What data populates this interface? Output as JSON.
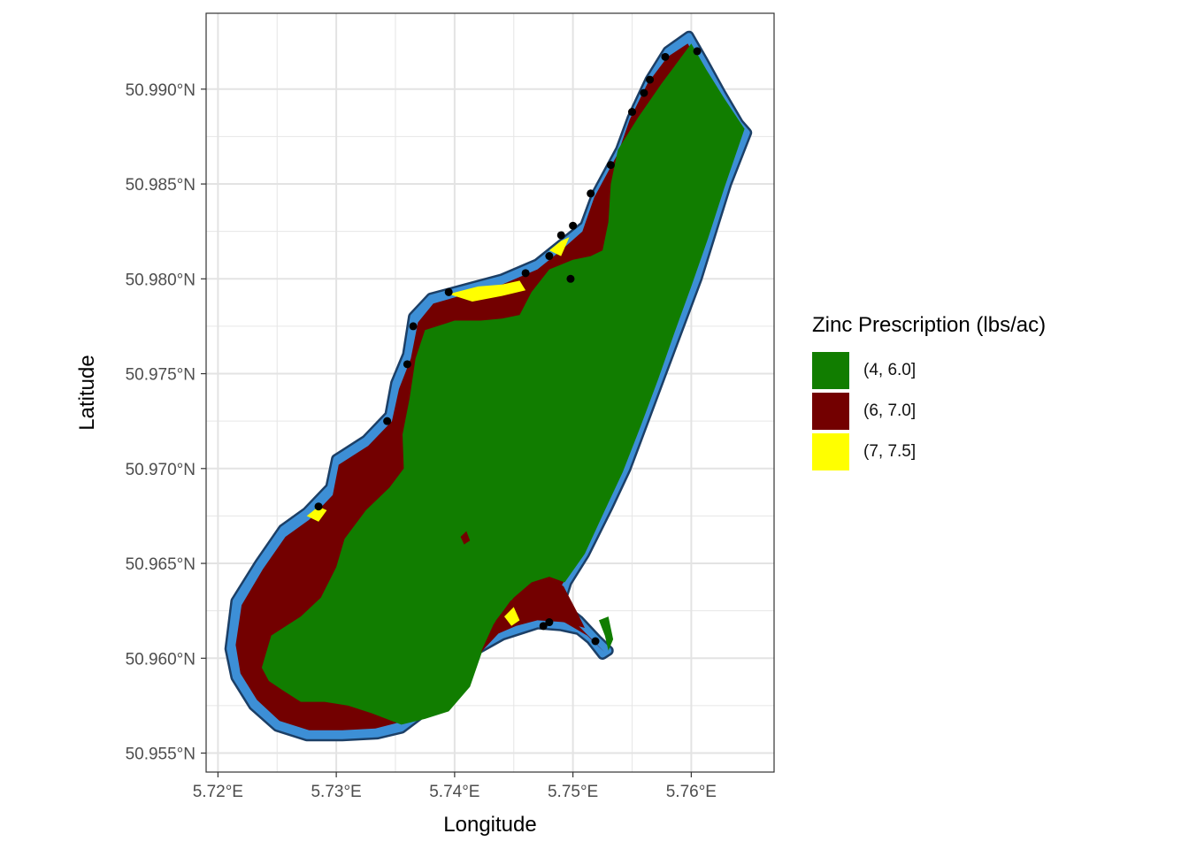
{
  "map": {
    "x_axis_title": "Longitude",
    "y_axis_title": "Latitude",
    "x_ticks": [
      {
        "value": 5.72,
        "label": "5.72°E"
      },
      {
        "value": 5.73,
        "label": "5.73°E"
      },
      {
        "value": 5.74,
        "label": "5.74°E"
      },
      {
        "value": 5.75,
        "label": "5.75°E"
      },
      {
        "value": 5.76,
        "label": "5.76°E"
      }
    ],
    "y_ticks": [
      {
        "value": 50.955,
        "label": "50.955°N"
      },
      {
        "value": 50.96,
        "label": "50.960°N"
      },
      {
        "value": 50.965,
        "label": "50.965°N"
      },
      {
        "value": 50.97,
        "label": "50.970°N"
      },
      {
        "value": 50.975,
        "label": "50.975°N"
      },
      {
        "value": 50.98,
        "label": "50.980°N"
      },
      {
        "value": 50.985,
        "label": "50.985°N"
      },
      {
        "value": 50.99,
        "label": "50.990°N"
      }
    ],
    "xlim": [
      5.719,
      5.767
    ],
    "ylim": [
      50.954,
      50.994
    ],
    "grid": true
  },
  "legend": {
    "title": "Zinc Prescription (lbs/ac)",
    "placement": "right",
    "items": [
      {
        "label": "(4, 6.0]",
        "color": "#117d00"
      },
      {
        "label": "(6, 7.0]",
        "color": "#730000"
      },
      {
        "label": "(7, 7.5]",
        "color": "#ffff00"
      }
    ]
  },
  "colors": {
    "boundary_light": "#3d8fd6",
    "boundary_dark": "#1c3f66",
    "points": "#000000",
    "grid": "#e6e6e6",
    "panel_border": "#333333"
  },
  "field_boundary": [
    [
      5.721,
      50.9605
    ],
    [
      5.7215,
      50.963
    ],
    [
      5.7235,
      50.965
    ],
    [
      5.7255,
      50.9668
    ],
    [
      5.7275,
      50.9677
    ],
    [
      5.7295,
      50.969
    ],
    [
      5.73,
      50.9705
    ],
    [
      5.7325,
      50.9715
    ],
    [
      5.7345,
      50.9728
    ],
    [
      5.735,
      50.9745
    ],
    [
      5.736,
      50.976
    ],
    [
      5.7365,
      50.978
    ],
    [
      5.738,
      50.979
    ],
    [
      5.741,
      50.9795
    ],
    [
      5.744,
      50.98
    ],
    [
      5.747,
      50.9808
    ],
    [
      5.749,
      50.9818
    ],
    [
      5.751,
      50.9828
    ],
    [
      5.752,
      50.9845
    ],
    [
      5.754,
      50.9868
    ],
    [
      5.755,
      50.9885
    ],
    [
      5.7565,
      50.9905
    ],
    [
      5.758,
      50.992
    ],
    [
      5.7598,
      50.9928
    ],
    [
      5.761,
      50.9915
    ],
    [
      5.7625,
      50.9898
    ],
    [
      5.764,
      50.9882
    ],
    [
      5.7647,
      50.9877
    ],
    [
      5.763,
      50.985
    ],
    [
      5.762,
      50.983
    ],
    [
      5.7605,
      50.98
    ],
    [
      5.759,
      50.9775
    ],
    [
      5.7575,
      50.975
    ],
    [
      5.756,
      50.9725
    ],
    [
      5.7545,
      50.97
    ],
    [
      5.753,
      50.968
    ],
    [
      5.751,
      50.9655
    ],
    [
      5.7495,
      50.964
    ],
    [
      5.749,
      50.963
    ],
    [
      5.7495,
      50.9625
    ],
    [
      5.7505,
      50.962
    ],
    [
      5.752,
      50.961
    ],
    [
      5.753,
      50.9604
    ],
    [
      5.7525,
      50.9602
    ],
    [
      5.7515,
      50.961
    ],
    [
      5.7505,
      50.9615
    ],
    [
      5.749,
      50.9617
    ],
    [
      5.747,
      50.9618
    ],
    [
      5.7455,
      50.9615
    ],
    [
      5.744,
      50.9612
    ],
    [
      5.742,
      50.9605
    ],
    [
      5.74,
      50.9595
    ],
    [
      5.7385,
      50.958
    ],
    [
      5.737,
      50.957
    ],
    [
      5.7355,
      50.9563
    ],
    [
      5.7335,
      50.956
    ],
    [
      5.7305,
      50.9559
    ],
    [
      5.7275,
      50.9559
    ],
    [
      5.725,
      50.9564
    ],
    [
      5.723,
      50.9575
    ],
    [
      5.7215,
      50.959
    ]
  ],
  "zone_6_7": [
    [
      5.7215,
      50.9607
    ],
    [
      5.722,
      50.9628
    ],
    [
      5.7238,
      50.9647
    ],
    [
      5.7257,
      50.9664
    ],
    [
      5.7277,
      50.9673
    ],
    [
      5.7297,
      50.9686
    ],
    [
      5.7302,
      50.9702
    ],
    [
      5.7327,
      50.9712
    ],
    [
      5.7347,
      50.9725
    ],
    [
      5.7353,
      50.9742
    ],
    [
      5.7363,
      50.9758
    ],
    [
      5.7369,
      50.9777
    ],
    [
      5.7382,
      50.9787
    ],
    [
      5.741,
      50.9792
    ],
    [
      5.744,
      50.9797
    ],
    [
      5.747,
      50.9805
    ],
    [
      5.749,
      50.9815
    ],
    [
      5.7508,
      50.9825
    ],
    [
      5.7518,
      50.9843
    ],
    [
      5.7538,
      50.9866
    ],
    [
      5.7548,
      50.9884
    ],
    [
      5.7563,
      50.9903
    ],
    [
      5.758,
      50.9917
    ],
    [
      5.7597,
      50.9924
    ],
    [
      5.7608,
      50.9912
    ],
    [
      5.7623,
      50.9896
    ],
    [
      5.764,
      50.9879
    ],
    [
      5.7625,
      50.9848
    ],
    [
      5.7612,
      50.9822
    ],
    [
      5.7598,
      50.9797
    ],
    [
      5.7584,
      50.9772
    ],
    [
      5.757,
      50.9747
    ],
    [
      5.7555,
      50.9722
    ],
    [
      5.754,
      50.9698
    ],
    [
      5.7525,
      50.9678
    ],
    [
      5.7507,
      50.9654
    ],
    [
      5.7491,
      50.9639
    ],
    [
      5.7488,
      50.9628
    ],
    [
      5.75,
      50.962
    ],
    [
      5.7516,
      50.961
    ],
    [
      5.7527,
      50.9603
    ],
    [
      5.7512,
      50.9612
    ],
    [
      5.749,
      50.962
    ],
    [
      5.747,
      50.9621
    ],
    [
      5.7453,
      50.9618
    ],
    [
      5.7438,
      50.9615
    ],
    [
      5.7417,
      50.9608
    ],
    [
      5.7397,
      50.9598
    ],
    [
      5.7382,
      50.9583
    ],
    [
      5.7367,
      50.9573
    ],
    [
      5.7352,
      50.9566
    ],
    [
      5.7333,
      50.9563
    ],
    [
      5.7305,
      50.9562
    ],
    [
      5.7277,
      50.9562
    ],
    [
      5.7252,
      50.9567
    ],
    [
      5.7233,
      50.9578
    ],
    [
      5.7219,
      50.9592
    ]
  ],
  "zone_4_6": [
    [
      5.7237,
      50.9595
    ],
    [
      5.7245,
      50.9612
    ],
    [
      5.727,
      50.9622
    ],
    [
      5.7287,
      50.9632
    ],
    [
      5.73,
      50.9648
    ],
    [
      5.7307,
      50.9663
    ],
    [
      5.7325,
      50.9678
    ],
    [
      5.7345,
      50.969
    ],
    [
      5.7357,
      50.97
    ],
    [
      5.7356,
      50.9718
    ],
    [
      5.7362,
      50.9737
    ],
    [
      5.7367,
      50.9758
    ],
    [
      5.7375,
      50.9773
    ],
    [
      5.74,
      50.9778
    ],
    [
      5.7422,
      50.9778
    ],
    [
      5.744,
      50.9779
    ],
    [
      5.7455,
      50.9781
    ],
    [
      5.7465,
      50.9793
    ],
    [
      5.748,
      50.9805
    ],
    [
      5.75,
      50.981
    ],
    [
      5.7515,
      50.9812
    ],
    [
      5.7525,
      50.9815
    ],
    [
      5.753,
      50.983
    ],
    [
      5.7532,
      50.985
    ],
    [
      5.7538,
      50.9868
    ],
    [
      5.7555,
      50.9885
    ],
    [
      5.7575,
      50.9903
    ],
    [
      5.76,
      50.9924
    ],
    [
      5.7613,
      50.991
    ],
    [
      5.7628,
      50.9895
    ],
    [
      5.7645,
      50.9879
    ],
    [
      5.7628,
      50.9848
    ],
    [
      5.7614,
      50.9821
    ],
    [
      5.76,
      50.9796
    ],
    [
      5.7586,
      50.9772
    ],
    [
      5.7572,
      50.9747
    ],
    [
      5.7557,
      50.9722
    ],
    [
      5.7542,
      50.9698
    ],
    [
      5.7527,
      50.9678
    ],
    [
      5.751,
      50.9655
    ],
    [
      5.7493,
      50.964
    ],
    [
      5.748,
      50.9643
    ],
    [
      5.7465,
      50.964
    ],
    [
      5.745,
      50.9632
    ],
    [
      5.7435,
      50.962
    ],
    [
      5.7423,
      50.9603
    ],
    [
      5.7413,
      50.9585
    ],
    [
      5.7395,
      50.9572
    ],
    [
      5.7375,
      50.9568
    ],
    [
      5.7355,
      50.9565
    ],
    [
      5.733,
      50.9571
    ],
    [
      5.731,
      50.9575
    ],
    [
      5.729,
      50.9577
    ],
    [
      5.727,
      50.9577
    ],
    [
      5.7255,
      50.9583
    ],
    [
      5.7243,
      50.9588
    ]
  ],
  "zone_6_7_inner": [
    [
      5.7422,
      50.9603
    ],
    [
      5.7433,
      50.9618
    ],
    [
      5.7447,
      50.963
    ],
    [
      5.7463,
      50.9638
    ],
    [
      5.748,
      50.9641
    ],
    [
      5.7492,
      50.9638
    ],
    [
      5.7503,
      50.9625
    ],
    [
      5.751,
      50.9616
    ],
    [
      5.7492,
      50.9619
    ],
    [
      5.747,
      50.962
    ],
    [
      5.7452,
      50.9617
    ],
    [
      5.7437,
      50.9613
    ]
  ],
  "zone_6_7_inner2": [
    [
      5.7527,
      50.9612
    ],
    [
      5.7522,
      50.962
    ],
    [
      5.753,
      50.9622
    ],
    [
      5.7534,
      50.961
    ],
    [
      5.753,
      50.9604
    ]
  ],
  "zone_7_75": [
    [
      [
        5.7395,
        50.9792
      ],
      [
        5.742,
        50.9796
      ],
      [
        5.744,
        50.9797
      ],
      [
        5.7455,
        50.9799
      ],
      [
        5.746,
        50.9794
      ],
      [
        5.744,
        50.9791
      ],
      [
        5.7415,
        50.9788
      ]
    ],
    [
      [
        5.748,
        50.9815
      ],
      [
        5.749,
        50.982
      ],
      [
        5.7497,
        50.9822
      ],
      [
        5.749,
        50.9812
      ]
    ],
    [
      [
        5.7275,
        50.9675
      ],
      [
        5.7285,
        50.968
      ],
      [
        5.7292,
        50.9678
      ],
      [
        5.7285,
        50.9672
      ]
    ],
    [
      [
        5.7442,
        50.9622
      ],
      [
        5.745,
        50.9627
      ],
      [
        5.7455,
        50.962
      ],
      [
        5.7448,
        50.9617
      ]
    ]
  ],
  "zone_6_7_spot": [
    [
      5.7405,
      50.9664
    ],
    [
      5.741,
      50.9667
    ],
    [
      5.7413,
      50.9662
    ],
    [
      5.7408,
      50.966
    ]
  ],
  "sample_points": [
    [
      5.7285,
      50.968
    ],
    [
      5.736,
      50.9755
    ],
    [
      5.7365,
      50.9775
    ],
    [
      5.7395,
      50.9793
    ],
    [
      5.746,
      50.9803
    ],
    [
      5.748,
      50.9812
    ],
    [
      5.749,
      50.9823
    ],
    [
      5.75,
      50.9828
    ],
    [
      5.7515,
      50.9845
    ],
    [
      5.7532,
      50.986
    ],
    [
      5.755,
      50.9888
    ],
    [
      5.7565,
      50.9905
    ],
    [
      5.7578,
      50.9917
    ],
    [
      5.7605,
      50.992
    ],
    [
      5.7475,
      50.9617
    ],
    [
      5.748,
      50.9619
    ],
    [
      5.7519,
      50.9609
    ],
    [
      5.7498,
      50.98
    ],
    [
      5.756,
      50.9898
    ],
    [
      5.7343,
      50.9725
    ]
  ]
}
